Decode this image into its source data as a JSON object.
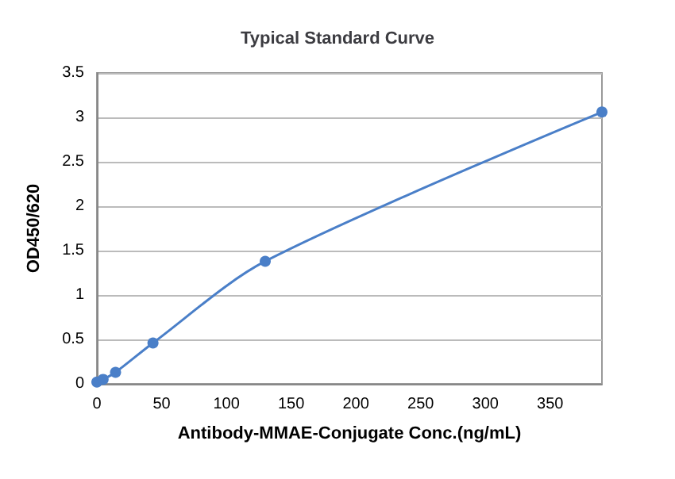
{
  "chart_data": {
    "type": "line",
    "title": "Typical Standard Curve",
    "xlabel": "Antibody-MMAE-Conjugate Conc.(ng/mL)",
    "ylabel": "OD450/620",
    "x": [
      0,
      4.8,
      14.4,
      43.3,
      130,
      390
    ],
    "series": [
      {
        "color": "#4a7fc8",
        "values": [
          0.02,
          0.05,
          0.13,
          0.46,
          1.38,
          3.06
        ]
      }
    ],
    "xlim": [
      0,
      390
    ],
    "xticks": [
      0,
      50,
      100,
      150,
      200,
      250,
      300,
      350
    ],
    "ylim": [
      0,
      3.5
    ],
    "yticks": [
      0,
      0.5,
      1,
      1.5,
      2,
      2.5,
      3,
      3.5
    ],
    "grid": "y",
    "marker": "circle",
    "line_style": "solid"
  }
}
